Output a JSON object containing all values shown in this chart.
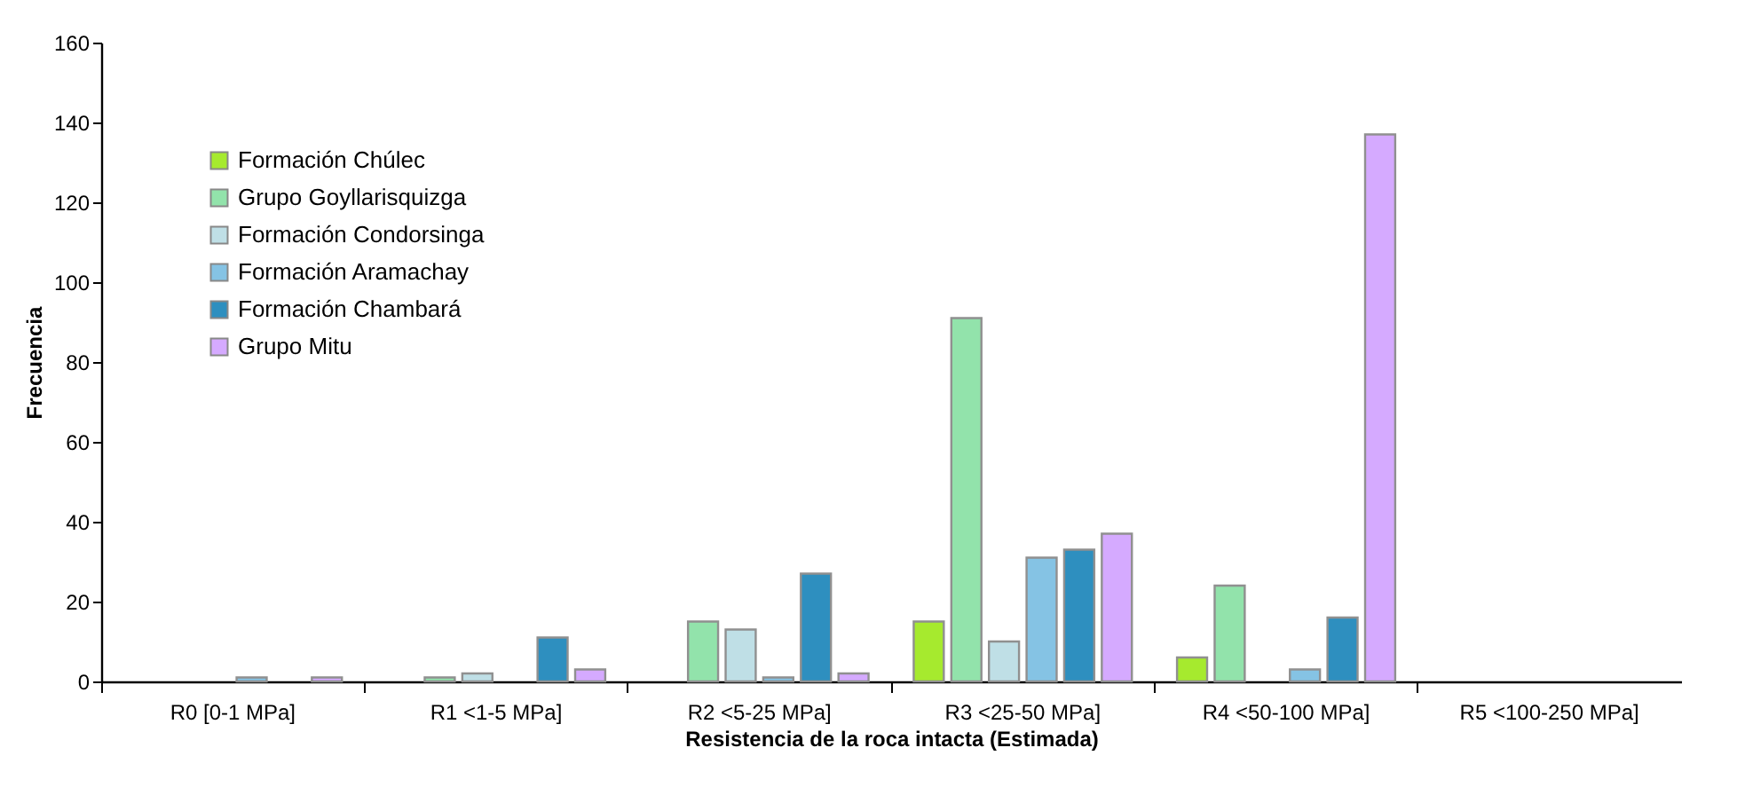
{
  "chart_data": {
    "type": "bar",
    "xlabel": "Resistencia  de la roca intacta (Estimada)",
    "ylabel": "Frecuencia",
    "categories": [
      "R0 [0-1 MPa]",
      "R1 <1-5 MPa]",
      "R2 <5-25 MPa]",
      "R3 <25-50 MPa]",
      "R4 <50-100 MPa]",
      "R5 <100-250 MPa]"
    ],
    "series": [
      {
        "name": "Formación Chúlec",
        "color": "#a6ea2e",
        "values": [
          null,
          null,
          null,
          15,
          6,
          null
        ]
      },
      {
        "name": "Grupo Goyllarisquizga",
        "color": "#92e3ab",
        "values": [
          null,
          1,
          15,
          91,
          24,
          null
        ]
      },
      {
        "name": "Formación Condorsinga",
        "color": "#bfdfe6",
        "values": [
          null,
          2,
          13,
          10,
          null,
          null
        ]
      },
      {
        "name": "Formación Aramachay",
        "color": "#85c3e4",
        "values": [
          1,
          null,
          1,
          31,
          3,
          null
        ]
      },
      {
        "name": "Formación Chambará",
        "color": "#2e8fbf",
        "values": [
          null,
          11,
          27,
          33,
          16,
          null
        ]
      },
      {
        "name": "Grupo Mitu",
        "color": "#d5aaff",
        "values": [
          1,
          3,
          2,
          37,
          137,
          null
        ]
      }
    ],
    "ylim": [
      0,
      160
    ],
    "yticks": [
      0,
      20,
      40,
      60,
      80,
      100,
      120,
      140,
      160
    ],
    "grid": false,
    "legend": "top left"
  }
}
